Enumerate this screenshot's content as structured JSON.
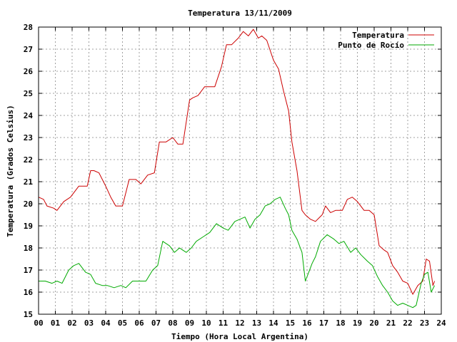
{
  "chart_data": {
    "type": "line",
    "title": "Temperatura 13/11/2009",
    "xlabel": "Tiempo (Hora Local Argentina)",
    "ylabel": "Temperatura (Grados Celsius)",
    "xlim": [
      0,
      24
    ],
    "ylim": [
      15,
      28
    ],
    "x_ticks": [
      "00",
      "01",
      "02",
      "03",
      "04",
      "05",
      "06",
      "07",
      "08",
      "09",
      "10",
      "11",
      "12",
      "13",
      "14",
      "15",
      "16",
      "17",
      "18",
      "19",
      "20",
      "21",
      "22",
      "23",
      "24"
    ],
    "y_ticks": [
      "15",
      "16",
      "17",
      "18",
      "19",
      "20",
      "21",
      "22",
      "23",
      "24",
      "25",
      "26",
      "27",
      "28"
    ],
    "grid": true,
    "legend_position": "top-right",
    "colors": {
      "Temperatura": "#cc0000",
      "Punto de Rocío": "#00aa00"
    },
    "series": [
      {
        "name": "Temperatura",
        "x": [
          0,
          0.3,
          0.5,
          0.9,
          1.1,
          1.5,
          1.9,
          2.4,
          2.9,
          3.1,
          3.3,
          3.6,
          4.0,
          4.3,
          4.6,
          5.0,
          5.4,
          5.8,
          6.1,
          6.5,
          6.9,
          7.2,
          7.6,
          8.0,
          8.3,
          8.6,
          9.0,
          9.2,
          9.5,
          9.9,
          10.2,
          10.5,
          10.9,
          11.2,
          11.5,
          11.9,
          12.2,
          12.5,
          12.8,
          13.1,
          13.3,
          13.6,
          14.0,
          14.3,
          14.6,
          14.9,
          15.1,
          15.4,
          15.7,
          15.9,
          16.2,
          16.5,
          16.9,
          17.1,
          17.4,
          17.7,
          18.1,
          18.4,
          18.7,
          19.0,
          19.4,
          19.7,
          20.0,
          20.3,
          20.6,
          20.8,
          21.1,
          21.4,
          21.7,
          22.0,
          22.3,
          22.6,
          22.9,
          23.1,
          23.3,
          23.5,
          23.6
        ],
        "values": [
          20.3,
          20.2,
          19.9,
          19.8,
          19.7,
          20.1,
          20.3,
          20.8,
          20.8,
          21.5,
          21.5,
          21.4,
          20.8,
          20.3,
          19.9,
          19.9,
          21.1,
          21.1,
          20.9,
          21.3,
          21.4,
          22.8,
          22.8,
          23.0,
          22.7,
          22.7,
          24.7,
          24.8,
          24.9,
          25.3,
          25.3,
          25.3,
          26.2,
          27.2,
          27.2,
          27.5,
          27.8,
          27.6,
          27.9,
          27.5,
          27.6,
          27.4,
          26.5,
          26.1,
          25.1,
          24.2,
          22.8,
          21.5,
          19.7,
          19.5,
          19.3,
          19.2,
          19.5,
          19.9,
          19.6,
          19.7,
          19.7,
          20.2,
          20.3,
          20.1,
          19.7,
          19.7,
          19.5,
          18.1,
          17.9,
          17.8,
          17.2,
          16.9,
          16.5,
          16.4,
          15.9,
          16.3,
          16.5,
          17.5,
          17.4,
          16.3,
          16.5
        ]
      },
      {
        "name": "Punto de Rocío",
        "x": [
          0,
          0.4,
          0.8,
          1.1,
          1.4,
          1.8,
          2.1,
          2.4,
          2.8,
          3.1,
          3.4,
          3.8,
          4.1,
          4.5,
          4.9,
          5.2,
          5.6,
          6.0,
          6.4,
          6.8,
          7.1,
          7.4,
          7.8,
          8.1,
          8.4,
          8.8,
          9.1,
          9.4,
          9.8,
          10.2,
          10.6,
          11.0,
          11.3,
          11.7,
          12.0,
          12.3,
          12.6,
          12.9,
          13.2,
          13.5,
          13.8,
          14.1,
          14.4,
          14.7,
          14.9,
          15.1,
          15.4,
          15.7,
          15.9,
          16.1,
          16.3,
          16.5,
          16.8,
          17.2,
          17.6,
          17.9,
          18.2,
          18.6,
          18.9,
          19.2,
          19.6,
          19.9,
          20.2,
          20.5,
          20.8,
          21.1,
          21.4,
          21.7,
          22.0,
          22.3,
          22.5,
          22.8,
          23.0,
          23.2,
          23.4,
          23.6
        ],
        "values": [
          16.5,
          16.5,
          16.4,
          16.5,
          16.4,
          17.0,
          17.2,
          17.3,
          16.9,
          16.8,
          16.4,
          16.3,
          16.3,
          16.2,
          16.3,
          16.2,
          16.5,
          16.5,
          16.5,
          17.0,
          17.2,
          18.3,
          18.1,
          17.8,
          18.0,
          17.8,
          18.0,
          18.3,
          18.5,
          18.7,
          19.1,
          18.9,
          18.8,
          19.2,
          19.3,
          19.4,
          18.9,
          19.3,
          19.5,
          19.9,
          20.0,
          20.2,
          20.3,
          19.8,
          19.5,
          18.8,
          18.4,
          17.8,
          16.5,
          16.9,
          17.3,
          17.6,
          18.3,
          18.6,
          18.4,
          18.2,
          18.3,
          17.8,
          18.0,
          17.7,
          17.4,
          17.2,
          16.7,
          16.3,
          16.0,
          15.6,
          15.4,
          15.5,
          15.4,
          15.3,
          15.4,
          16.4,
          16.8,
          16.9,
          16.0,
          16.3
        ]
      }
    ]
  }
}
